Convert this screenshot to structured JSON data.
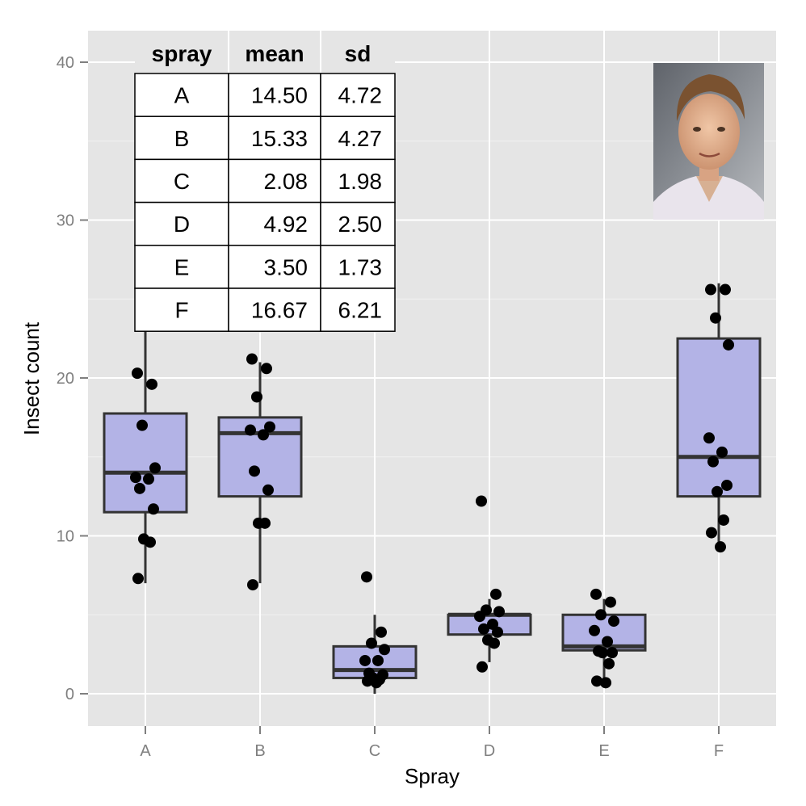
{
  "chart_data": {
    "type": "box",
    "title": "",
    "xlabel": "Spray",
    "ylabel": "Insect count",
    "categories": [
      "A",
      "B",
      "C",
      "D",
      "E",
      "F"
    ],
    "yticks": [
      0,
      10,
      20,
      30,
      40
    ],
    "ylim": [
      -2,
      42
    ],
    "grid": true,
    "colors": {
      "panel": "#e5e5e5",
      "grid": "#ffffff",
      "box_fill": "#b3b3e6",
      "box_line": "#333333",
      "point": "#000000"
    },
    "boxes": [
      {
        "category": "A",
        "min": 7,
        "q1": 11.5,
        "median": 14,
        "q3": 17.75,
        "max": 23
      },
      {
        "category": "B",
        "min": 7,
        "q1": 12.5,
        "median": 16.5,
        "q3": 17.5,
        "max": 21
      },
      {
        "category": "C",
        "min": 0,
        "q1": 1,
        "median": 1.5,
        "q3": 3,
        "max": 5
      },
      {
        "category": "D",
        "min": 2,
        "q1": 3.75,
        "median": 5,
        "q3": 5,
        "max": 6
      },
      {
        "category": "E",
        "min": 1,
        "q1": 2.75,
        "median": 3,
        "q3": 5,
        "max": 6
      },
      {
        "category": "F",
        "min": 9,
        "q1": 12.5,
        "median": 15,
        "q3": 22.5,
        "max": 26
      }
    ],
    "points": [
      {
        "category": "A",
        "values": [
          20.3,
          19.6,
          17.0,
          14.3,
          13.7,
          13.6,
          13.0,
          11.7,
          9.8,
          9.6,
          7.3
        ]
      },
      {
        "category": "B",
        "values": [
          21.2,
          20.6,
          18.8,
          16.9,
          16.7,
          16.4,
          14.1,
          12.9,
          10.8,
          10.8,
          6.9
        ]
      },
      {
        "category": "C",
        "values": [
          7.4,
          3.9,
          3.2,
          2.8,
          2.1,
          2.1,
          1.3,
          1.2,
          1.0,
          0.9,
          0.8,
          0.7
        ]
      },
      {
        "category": "D",
        "values": [
          12.2,
          6.3,
          5.3,
          5.2,
          4.9,
          4.4,
          4.1,
          3.9,
          3.4,
          3.2,
          1.7
        ]
      },
      {
        "category": "E",
        "values": [
          6.3,
          5.8,
          5.0,
          4.6,
          4.0,
          3.3,
          2.7,
          2.6,
          2.6,
          1.9,
          0.8,
          0.7
        ]
      },
      {
        "category": "F",
        "values": [
          25.6,
          25.6,
          23.8,
          22.1,
          16.2,
          15.3,
          14.7,
          13.2,
          12.8,
          11.0,
          10.2,
          9.3
        ]
      }
    ]
  },
  "summary_table": {
    "headers": [
      "spray",
      "mean",
      "sd"
    ],
    "rows": [
      [
        "A",
        "14.50",
        "4.72"
      ],
      [
        "B",
        "15.33",
        "4.27"
      ],
      [
        "C",
        "2.08",
        "1.98"
      ],
      [
        "D",
        "4.92",
        "2.50"
      ],
      [
        "E",
        "3.50",
        "1.73"
      ],
      [
        "F",
        "16.67",
        "6.21"
      ]
    ]
  },
  "inset_image": {
    "subject": "portrait-photo"
  }
}
